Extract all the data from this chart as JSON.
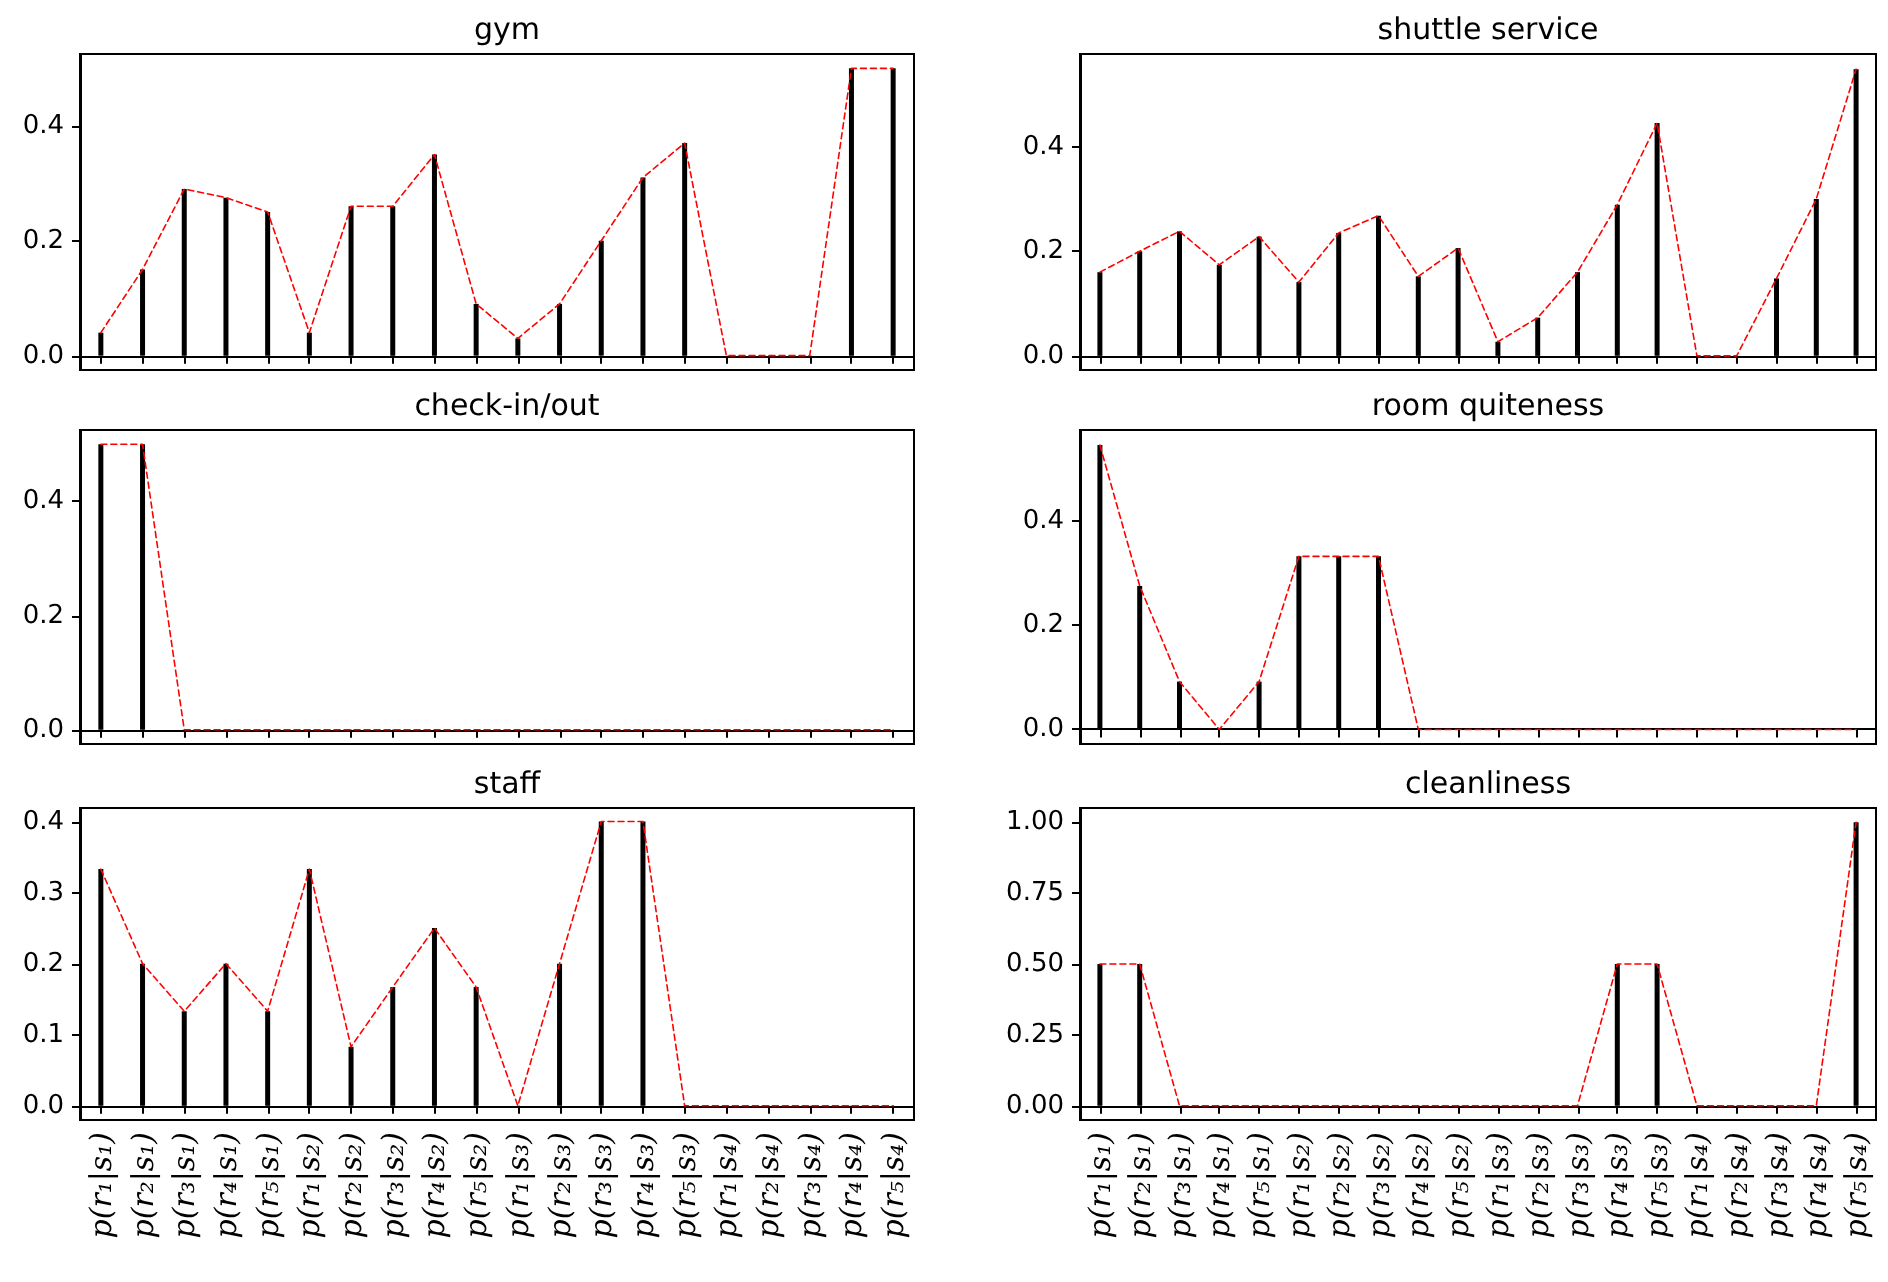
{
  "chart_data": [
    {
      "type": "bar",
      "title": "gym",
      "categories": [
        null,
        null,
        null,
        null,
        null,
        null,
        null,
        null,
        null,
        null,
        null,
        null,
        null,
        null,
        null,
        null,
        null,
        null,
        null,
        null
      ],
      "series": [
        {
          "color": "#000000",
          "values": [
            0.04,
            0.15,
            0.29,
            0.275,
            0.25,
            0.04,
            0.26,
            0.26,
            0.35,
            0.09,
            0.03,
            0.09,
            0.2,
            0.31,
            0.37,
            0,
            0,
            0,
            0.5,
            0.5
          ]
        },
        {
          "type": "line",
          "color": "#ff0000",
          "line_style": "dashed",
          "values": [
            0.04,
            0.15,
            0.29,
            0.275,
            0.25,
            0.04,
            0.26,
            0.26,
            0.35,
            0.09,
            0.03,
            0.09,
            0.2,
            0.31,
            0.37,
            0,
            0,
            0,
            0.5,
            0.5
          ]
        }
      ],
      "ylim": [
        -0.025,
        0.525
      ],
      "yticks": [
        {
          "value": 0,
          "label": "0.0"
        },
        0.2,
        0.4
      ],
      "marker": "none",
      "tick_labels": "y"
    },
    {
      "type": "bar",
      "title": "shuttle service",
      "categories": [
        null,
        null,
        null,
        null,
        null,
        null,
        null,
        null,
        null,
        null,
        null,
        null,
        null,
        null,
        null,
        null,
        null,
        null,
        null,
        null
      ],
      "series": [
        {
          "color": "#000000",
          "values": [
            0.16,
            0.2,
            0.238,
            0.174,
            0.228,
            0.141,
            0.235,
            0.268,
            0.152,
            0.206,
            0.027,
            0.073,
            0.16,
            0.289,
            0.445,
            0,
            0,
            0.148,
            0.3,
            0.548
          ]
        },
        {
          "type": "line",
          "color": "#ff0000",
          "line_style": "dashed",
          "values": [
            0.16,
            0.2,
            0.238,
            0.174,
            0.228,
            0.141,
            0.235,
            0.268,
            0.152,
            0.206,
            0.027,
            0.073,
            0.16,
            0.289,
            0.445,
            0,
            0,
            0.148,
            0.3,
            0.548
          ]
        }
      ],
      "ylim": [
        -0.027,
        0.577
      ],
      "yticks": [
        {
          "value": 0,
          "label": "0.0"
        },
        0.2,
        0.4
      ],
      "marker": "none",
      "tick_labels": "y"
    },
    {
      "type": "bar",
      "title": "check-in/out",
      "categories": [
        null,
        null,
        null,
        null,
        null,
        null,
        null,
        null,
        null,
        null,
        null,
        null,
        null,
        null,
        null,
        null,
        null,
        null,
        null,
        null
      ],
      "series": [
        {
          "color": "#000000",
          "values": [
            0.5,
            0.5,
            0,
            0,
            0,
            0,
            0,
            0,
            0,
            0,
            0,
            0,
            0,
            0,
            0,
            0,
            0,
            0,
            0,
            0
          ]
        },
        {
          "type": "line",
          "color": "#ff0000",
          "line_style": "dashed",
          "values": [
            0.5,
            0.5,
            0,
            0,
            0,
            0,
            0,
            0,
            0,
            0,
            0,
            0,
            0,
            0,
            0,
            0,
            0,
            0,
            0,
            0
          ]
        }
      ],
      "ylim": [
        -0.025,
        0.525
      ],
      "yticks": [
        {
          "value": 0,
          "label": "0.0"
        },
        0.2,
        0.4
      ],
      "marker": "none",
      "tick_labels": "y"
    },
    {
      "type": "bar",
      "title": "room quiteness",
      "categories": [
        null,
        null,
        null,
        null,
        null,
        null,
        null,
        null,
        null,
        null,
        null,
        null,
        null,
        null,
        null,
        null,
        null,
        null,
        null,
        null
      ],
      "series": [
        {
          "color": "#000000",
          "values": [
            0.547,
            0.276,
            0.092,
            0,
            0.092,
            0.333,
            0.333,
            0.333,
            0,
            0,
            0,
            0,
            0,
            0,
            0,
            0,
            0,
            0,
            0,
            0
          ]
        },
        {
          "type": "line",
          "color": "#ff0000",
          "line_style": "dashed",
          "values": [
            0.547,
            0.276,
            0.092,
            0,
            0.092,
            0.333,
            0.333,
            0.333,
            0,
            0,
            0,
            0,
            0,
            0,
            0,
            0,
            0,
            0,
            0,
            0
          ]
        }
      ],
      "ylim": [
        -0.028,
        0.576
      ],
      "yticks": [
        {
          "value": 0,
          "label": "0.0"
        },
        0.2,
        0.4
      ],
      "marker": "none",
      "tick_labels": "y"
    },
    {
      "type": "bar",
      "title": "staff",
      "categories": [
        "p(r₁|s₁)",
        "p(r₂|s₁)",
        "p(r₃|s₁)",
        "p(r₄|s₁)",
        "p(r₅|s₁)",
        "p(r₁|s₂)",
        "p(r₂|s₂)",
        "p(r₃|s₂)",
        "p(r₄|s₂)",
        "p(r₅|s₂)",
        "p(r₁|s₃)",
        "p(r₂|s₃)",
        "p(r₃|s₃)",
        "p(r₄|s₃)",
        "p(r₅|s₃)",
        "p(r₁|s₄)",
        "p(r₂|s₄)",
        "p(r₃|s₄)",
        "p(r₄|s₄)",
        "p(r₅|s₄)"
      ],
      "series": [
        {
          "color": "#000000",
          "values": [
            0.333,
            0.2,
            0.133,
            0.2,
            0.133,
            0.333,
            0.083,
            0.167,
            0.25,
            0.167,
            0,
            0.2,
            0.4,
            0.4,
            0,
            0,
            0,
            0,
            0,
            0
          ]
        },
        {
          "type": "line",
          "color": "#ff0000",
          "line_style": "dashed",
          "values": [
            0.333,
            0.2,
            0.133,
            0.2,
            0.133,
            0.333,
            0.083,
            0.167,
            0.25,
            0.167,
            0,
            0.2,
            0.4,
            0.4,
            0,
            0,
            0,
            0,
            0,
            0
          ]
        }
      ],
      "ylim": [
        -0.02,
        0.419
      ],
      "yticks": [
        {
          "value": 0,
          "label": "0.0"
        },
        0.1,
        0.2,
        0.3,
        0.4
      ],
      "marker": "none"
    },
    {
      "type": "bar",
      "title": "cleanliness",
      "categories": [
        "p(r₁|s₁)",
        "p(r₂|s₁)",
        "p(r₃|s₁)",
        "p(r₄|s₁)",
        "p(r₅|s₁)",
        "p(r₁|s₂)",
        "p(r₂|s₂)",
        "p(r₃|s₂)",
        "p(r₄|s₂)",
        "p(r₅|s₂)",
        "p(r₁|s₃)",
        "p(r₂|s₃)",
        "p(r₃|s₃)",
        "p(r₄|s₃)",
        "p(r₅|s₃)",
        "p(r₁|s₄)",
        "p(r₂|s₄)",
        "p(r₃|s₄)",
        "p(r₄|s₄)",
        "p(r₅|s₄)"
      ],
      "series": [
        {
          "color": "#000000",
          "values": [
            0.5,
            0.5,
            0,
            0,
            0,
            0,
            0,
            0,
            0,
            0,
            0,
            0,
            0,
            0.5,
            0.5,
            0,
            0,
            0,
            0,
            1.0
          ]
        },
        {
          "type": "line",
          "color": "#ff0000",
          "line_style": "dashed",
          "values": [
            0.5,
            0.5,
            0,
            0,
            0,
            0,
            0,
            0,
            0,
            0,
            0,
            0,
            0,
            0.5,
            0.5,
            0,
            0,
            0,
            0,
            1.0
          ]
        }
      ],
      "ylim": [
        -0.05,
        1.05
      ],
      "yticks": [
        {
          "value": 0,
          "label": "0.00"
        },
        0.25,
        {
          "value": 0.5,
          "label": "0.50"
        },
        0.75,
        {
          "value": 1,
          "label": "1.00"
        }
      ],
      "marker": "none"
    }
  ]
}
